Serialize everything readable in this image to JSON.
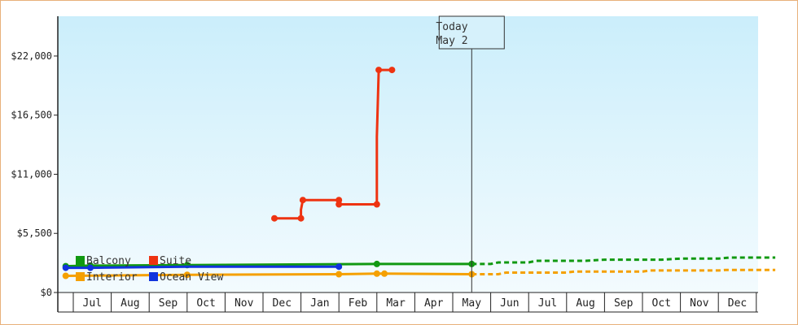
{
  "chart_data": {
    "type": "line",
    "title": "",
    "xlabel": "",
    "ylabel": "",
    "ylim": [
      0,
      25700
    ],
    "y_ticks": [
      "$0",
      "$5,500",
      "$11,000",
      "$16,500",
      "$22,000"
    ],
    "y_tick_values": [
      0,
      5500,
      11000,
      16500,
      22000
    ],
    "x_ticks": [
      "Jul",
      "Aug",
      "Sep",
      "Oct",
      "Nov",
      "Dec",
      "Jan",
      "Feb",
      "Mar",
      "Apr",
      "May",
      "Jun",
      "Jul",
      "Aug",
      "Sep",
      "Oct",
      "Nov",
      "Dec"
    ],
    "x_start": "Jun 15",
    "x_end": "Dec 31",
    "today": {
      "line1": "Today",
      "line2": "May 2",
      "x": 10.5
    },
    "grid": false,
    "legend_position": "bottom-left",
    "series": [
      {
        "name": "Balcony",
        "color": "#119911",
        "points": [
          [
            -0.2,
            2450
          ],
          [
            0.45,
            2500
          ],
          [
            3.0,
            2550
          ],
          [
            8.0,
            2650
          ],
          [
            10.5,
            2650
          ]
        ],
        "markers": [
          [
            -0.2,
            2450
          ],
          [
            0.45,
            2500
          ],
          [
            3.0,
            2550
          ],
          [
            8.0,
            2650
          ],
          [
            10.5,
            2650
          ]
        ],
        "forecast": [
          [
            10.5,
            2650
          ],
          [
            11.0,
            2650
          ],
          [
            11.2,
            2800
          ],
          [
            12.0,
            2800
          ],
          [
            12.2,
            2950
          ],
          [
            13.5,
            2950
          ],
          [
            14.0,
            3050
          ],
          [
            15.5,
            3050
          ],
          [
            16.0,
            3150
          ],
          [
            17.0,
            3150
          ],
          [
            17.3,
            3250
          ],
          [
            18.5,
            3250
          ]
        ]
      },
      {
        "name": "Suite",
        "color": "#ee3311",
        "points": [
          [
            5.3,
            6900
          ],
          [
            6.0,
            6900
          ],
          [
            6.0,
            7700
          ],
          [
            6.05,
            8600
          ],
          [
            7.0,
            8600
          ],
          [
            7.0,
            8200
          ],
          [
            8.0,
            8200
          ],
          [
            8.0,
            14500
          ],
          [
            8.05,
            20700
          ],
          [
            8.4,
            20700
          ]
        ],
        "markers": [
          [
            5.3,
            6900
          ],
          [
            6.0,
            6900
          ],
          [
            6.05,
            8600
          ],
          [
            7.0,
            8600
          ],
          [
            7.0,
            8200
          ],
          [
            8.0,
            8200
          ],
          [
            8.05,
            20700
          ],
          [
            8.4,
            20700
          ]
        ],
        "forecast": []
      },
      {
        "name": "Interior",
        "color": "#f5a000",
        "points": [
          [
            -0.2,
            1550
          ],
          [
            3.0,
            1650
          ],
          [
            7.0,
            1700
          ],
          [
            8.0,
            1750
          ],
          [
            8.2,
            1750
          ],
          [
            10.5,
            1700
          ]
        ],
        "markers": [
          [
            -0.2,
            1550
          ],
          [
            3.0,
            1650
          ],
          [
            7.0,
            1700
          ],
          [
            8.0,
            1750
          ],
          [
            8.2,
            1750
          ],
          [
            10.5,
            1700
          ]
        ],
        "forecast": [
          [
            10.5,
            1700
          ],
          [
            11.2,
            1700
          ],
          [
            11.4,
            1850
          ],
          [
            13.0,
            1850
          ],
          [
            13.2,
            1950
          ],
          [
            15.0,
            1950
          ],
          [
            15.2,
            2050
          ],
          [
            17.0,
            2050
          ],
          [
            17.2,
            2100
          ],
          [
            18.5,
            2100
          ]
        ]
      },
      {
        "name": "Ocean View",
        "color": "#1133dd",
        "points": [
          [
            -0.2,
            2300
          ],
          [
            0.45,
            2300
          ],
          [
            3.0,
            2400
          ],
          [
            7.0,
            2400
          ]
        ],
        "markers": [
          [
            -0.2,
            2300
          ],
          [
            0.45,
            2300
          ],
          [
            7.0,
            2400
          ]
        ],
        "forecast": []
      }
    ]
  }
}
